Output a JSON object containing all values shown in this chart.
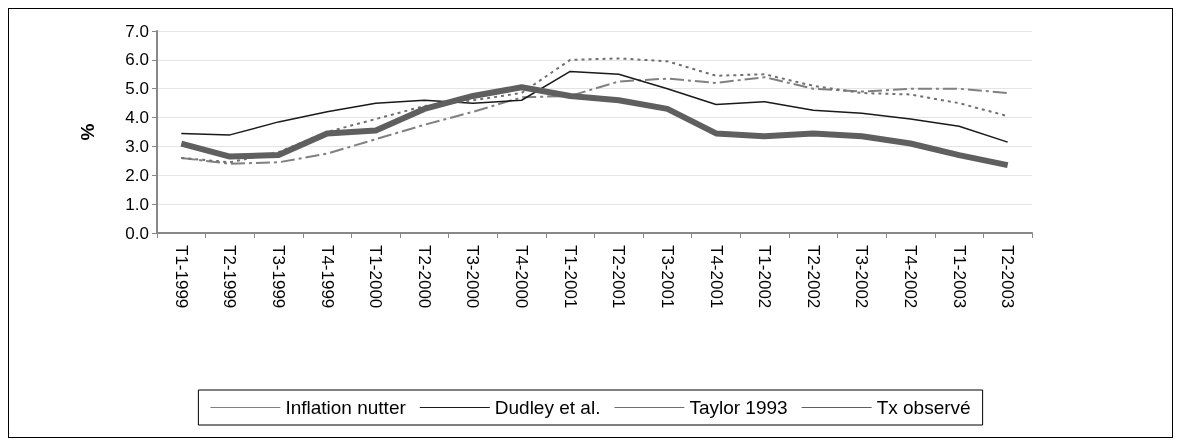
{
  "chart_data": {
    "type": "line",
    "ylabel": "%",
    "categories": [
      "T1-1999",
      "T2-1999",
      "T3-1999",
      "T4-1999",
      "T1-2000",
      "T2-2000",
      "T3-2000",
      "T4-2000",
      "T1-2001",
      "T2-2001",
      "T3-2001",
      "T4-2001",
      "T1-2002",
      "T2-2002",
      "T3-2002",
      "T4-2002",
      "T1-2003",
      "T2-2003"
    ],
    "series": [
      {
        "name": "Inflation nutter",
        "color": "#808080",
        "line_style": "dashdot",
        "values": [
          2.6,
          2.4,
          2.45,
          2.75,
          3.25,
          3.75,
          4.2,
          4.7,
          4.75,
          5.25,
          5.35,
          5.2,
          5.4,
          5.0,
          4.9,
          5.0,
          5.0,
          4.85
        ]
      },
      {
        "name": "Dudley et al.",
        "color": "#1a1a1a",
        "line_style": "solid",
        "values": [
          3.45,
          3.4,
          3.85,
          4.2,
          4.5,
          4.6,
          4.5,
          4.6,
          5.6,
          5.5,
          5.0,
          4.45,
          4.55,
          4.25,
          4.15,
          3.95,
          3.7,
          3.15
        ]
      },
      {
        "name": "Taylor 1993",
        "color": "#707070",
        "line_style": "dotted",
        "values": [
          2.6,
          2.45,
          2.8,
          3.5,
          3.95,
          4.4,
          4.6,
          4.85,
          6.0,
          6.05,
          5.95,
          5.45,
          5.5,
          5.1,
          4.85,
          4.8,
          4.5,
          4.05
        ]
      },
      {
        "name": "Tx observé",
        "color": "#5f5f5f",
        "line_style": "solid",
        "values": [
          3.1,
          2.65,
          2.7,
          3.45,
          3.55,
          4.3,
          4.75,
          5.05,
          4.75,
          4.6,
          4.3,
          3.45,
          3.35,
          3.45,
          3.35,
          3.1,
          2.7,
          2.35
        ]
      }
    ],
    "ylim": [
      0,
      7
    ],
    "yticks": [
      {
        "value": 0,
        "label": "0.0"
      },
      {
        "value": 1,
        "label": "1.0"
      },
      {
        "value": 2,
        "label": "2.0"
      },
      {
        "value": 3,
        "label": "3.0"
      },
      {
        "value": 4,
        "label": "4.0"
      },
      {
        "value": 5,
        "label": "5.0"
      },
      {
        "value": 6,
        "label": "6.0"
      },
      {
        "value": 7,
        "label": "7.0"
      }
    ],
    "grid": "y",
    "legend": "bottom",
    "marker": "none"
  }
}
